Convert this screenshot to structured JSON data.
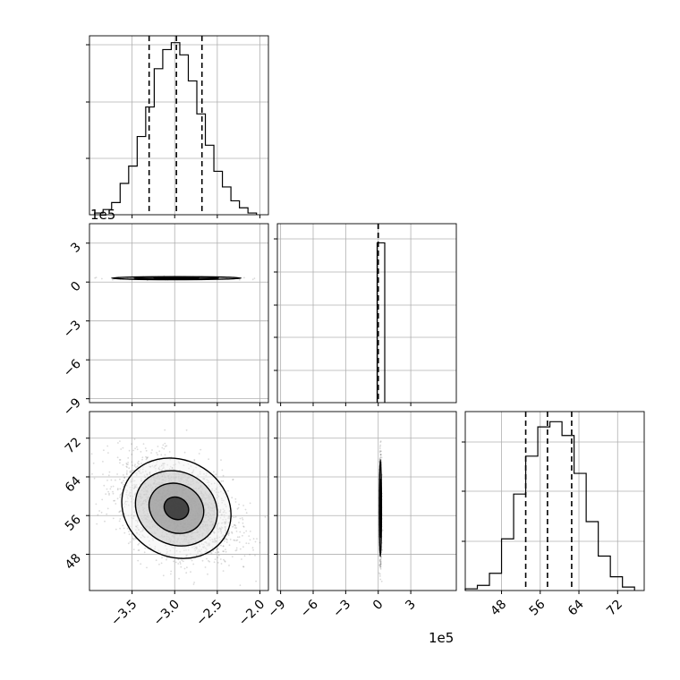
{
  "chart_data": [
    {
      "panel": "marginal-x",
      "type": "histogram",
      "xlim": [
        -4.0,
        -1.9
      ],
      "bin_edges": [
        -3.94,
        -3.84,
        -3.74,
        -3.64,
        -3.54,
        -3.44,
        -3.34,
        -3.24,
        -3.14,
        -3.04,
        -2.94,
        -2.84,
        -2.74,
        -2.64,
        -2.54,
        -2.44,
        -2.34,
        -2.24,
        -2.14,
        -2.04
      ],
      "counts": [
        1,
        3,
        7,
        18,
        28,
        45,
        62,
        84,
        95,
        99,
        92,
        77,
        58,
        40,
        25,
        16,
        8,
        4,
        1
      ],
      "quantiles": [
        -3.3,
        -2.98,
        -2.68
      ],
      "grid": true
    },
    {
      "panel": "marginal-y",
      "type": "histogram",
      "xlim": [
        -9.3,
        7.2
      ],
      "bin_edges": [
        -0.1,
        0.6
      ],
      "counts": [
        100
      ],
      "quantiles": [
        0.0,
        0.0,
        0.0
      ],
      "grid": true
    },
    {
      "panel": "marginal-z",
      "type": "histogram",
      "xlim": [
        40.5,
        77.5
      ],
      "bin_edges": [
        40.5,
        43,
        45.5,
        48,
        50.5,
        53,
        55.5,
        58,
        60.5,
        63,
        65.5,
        68,
        70.5,
        73,
        75.5
      ],
      "counts": [
        1,
        3,
        10,
        30,
        56,
        78,
        95,
        98,
        90,
        68,
        40,
        20,
        8,
        2
      ],
      "quantiles": [
        53,
        57.5,
        62.5
      ],
      "grid": true
    },
    {
      "panel": "joint-x-y",
      "type": "scatter",
      "xlim": [
        -4.0,
        -1.9
      ],
      "ylim": [
        -9.3,
        4.5
      ],
      "center": [
        -2.98,
        0.3
      ],
      "spread": [
        0.33,
        0.05
      ],
      "grid": true
    },
    {
      "panel": "joint-x-z",
      "type": "scatter",
      "xlim": [
        -4.0,
        -1.9
      ],
      "ylim": [
        40.5,
        77.5
      ],
      "center": [
        -2.98,
        57.5
      ],
      "spread": [
        0.33,
        5.0
      ],
      "correlation": -0.35,
      "grid": true
    },
    {
      "panel": "joint-y-z",
      "type": "scatter",
      "xlim": [
        -9.3,
        7.2
      ],
      "ylim": [
        40.5,
        77.5
      ],
      "center": [
        0.2,
        57.5
      ],
      "spread": [
        0.05,
        5.0
      ],
      "grid": true
    }
  ],
  "axes": {
    "x_ticks": [
      "−3.5",
      "−3.0",
      "−2.5",
      "−2.0"
    ],
    "y_ticks": [
      "3",
      "0",
      "−3",
      "−6",
      "−9"
    ],
    "y_ticks_as_x": [
      "−9",
      "−6",
      "−3",
      "0",
      "3"
    ],
    "z_ticks": [
      "72",
      "64",
      "56",
      "48"
    ],
    "z_ticks_as_x": [
      "48",
      "56",
      "64",
      "72"
    ],
    "offset_top": "1e5",
    "offset_bottom": "1e5"
  }
}
